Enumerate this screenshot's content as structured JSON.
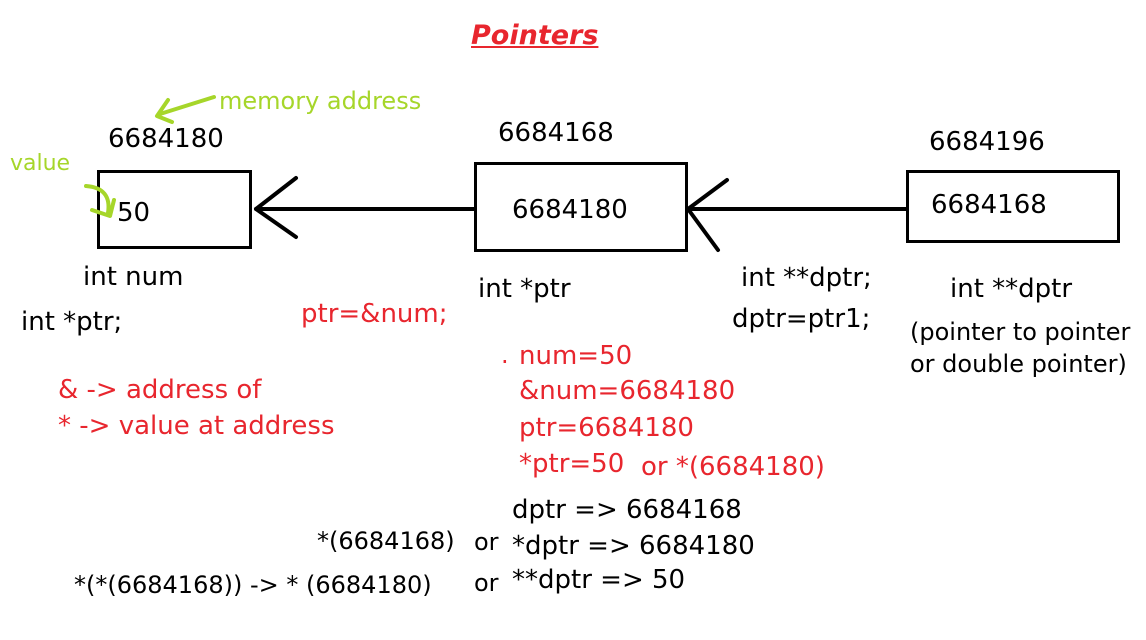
{
  "title": "Pointers",
  "colors": {
    "red": "#e8262e",
    "green": "#a6d62a",
    "black": "#000000"
  },
  "annotations": {
    "memory_address": "memory address",
    "value": "value"
  },
  "boxes": [
    {
      "address": "6684180",
      "content": "50",
      "declaration": "int num"
    },
    {
      "address": "6684168",
      "content": "6684180",
      "declaration": "int *ptr"
    },
    {
      "address": "6684196",
      "content": "6684168",
      "declaration": "int **dptr"
    }
  ],
  "notes": {
    "int_ptr": "int *ptr;",
    "ptr_assign": "ptr=&num;",
    "address_of": "& -> address of",
    "value_at": "* -> value at address",
    "dptr_decl": "int  **dptr;",
    "dptr_assign": "dptr=ptr1;",
    "double_pointer_1": "(pointer to pointer",
    "double_pointer_2": "or double pointer)",
    "dot": ".",
    "num_eq": "num=50",
    "addr_num": "&num=6684180",
    "ptr_eq": "ptr=6684180",
    "deref_ptr": "*ptr=50",
    "or_deref": "or  *(6684180)",
    "dptr_val": "dptr  => 6684168",
    "deref_6684168": "*(6684168)",
    "or1": "or",
    "deref_dptr": "*dptr => 6684180",
    "deref_deref": "*(*(6684168))  ->  * (6684180)",
    "or2": "or",
    "double_deref": "**dptr => 50"
  }
}
